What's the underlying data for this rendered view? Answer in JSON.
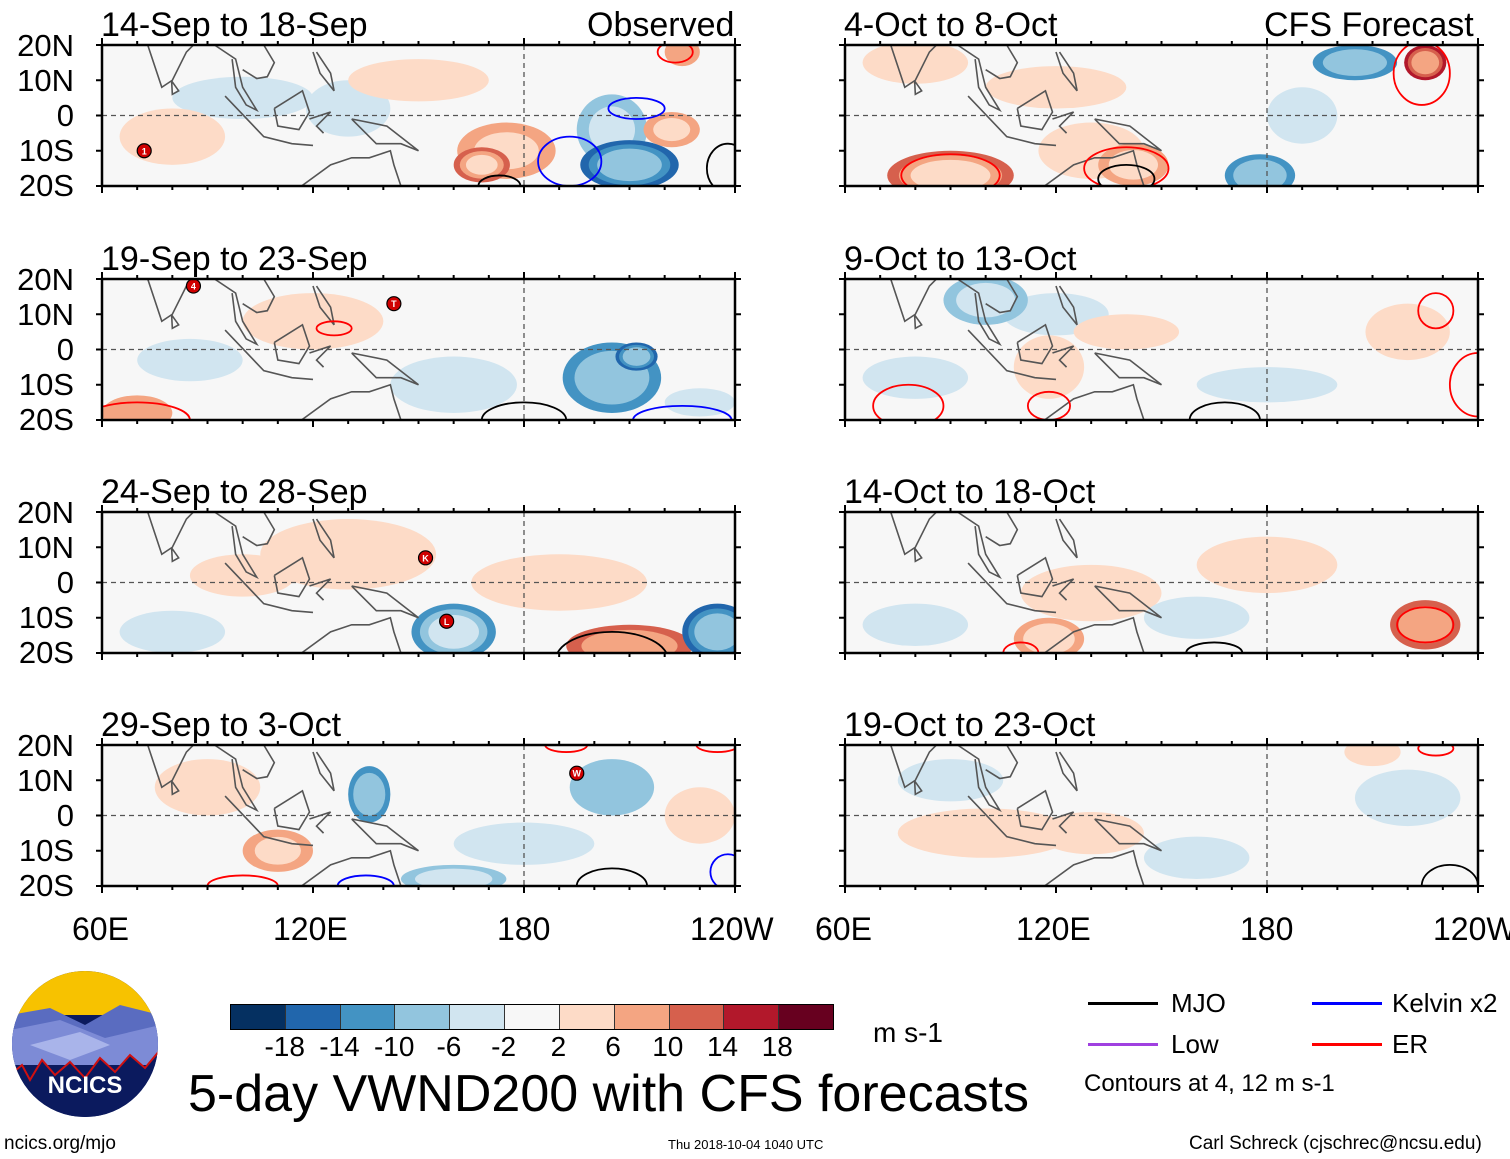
{
  "columns": [
    {
      "label": "Observed"
    },
    {
      "label": "CFS Forecast"
    }
  ],
  "lat_labels": [
    "20N",
    "10N",
    "0",
    "10S",
    "20S"
  ],
  "lon_labels": [
    "60E",
    "120E",
    "180",
    "120W"
  ],
  "panels": [
    {
      "title": "14-Sep to 18-Sep",
      "anoms": [
        [
          175,
          -10,
          14,
          8,
          7
        ],
        [
          168,
          -14,
          8,
          5,
          11
        ],
        [
          210,
          -14,
          14,
          7,
          -14
        ],
        [
          205,
          -4,
          10,
          10,
          -7
        ],
        [
          222,
          -4,
          8,
          5,
          7
        ],
        [
          100,
          5,
          20,
          6,
          -3
        ],
        [
          130,
          2,
          12,
          8,
          -3
        ],
        [
          80,
          -6,
          15,
          8,
          3
        ],
        [
          150,
          10,
          20,
          6,
          3
        ],
        [
          225,
          18,
          5,
          4,
          6
        ]
      ],
      "contours": [
        [
          212,
          2,
          8,
          3,
          "kelvin"
        ],
        [
          193,
          -13,
          9,
          7,
          "kelvin"
        ],
        [
          223,
          18,
          5,
          3,
          "er"
        ],
        [
          238,
          -15,
          6,
          7,
          "mjo"
        ],
        [
          173,
          -20,
          6,
          3,
          "mjo"
        ]
      ],
      "storms": [
        [
          72,
          -10,
          "1"
        ]
      ]
    },
    {
      "title": "4-Oct to 8-Oct",
      "anoms": [
        [
          90,
          -17,
          18,
          7,
          13
        ],
        [
          80,
          15,
          15,
          6,
          5
        ],
        [
          130,
          -10,
          15,
          8,
          4
        ],
        [
          178,
          -17,
          10,
          6,
          -10
        ],
        [
          205,
          15,
          12,
          5,
          -10
        ],
        [
          225,
          15,
          6,
          5,
          14
        ],
        [
          120,
          8,
          20,
          6,
          3
        ],
        [
          142,
          -14,
          10,
          6,
          8
        ],
        [
          190,
          0,
          10,
          8,
          -3
        ]
      ],
      "contours": [
        [
          90,
          -17,
          14,
          6,
          "er"
        ],
        [
          140,
          -15,
          12,
          6,
          "er"
        ],
        [
          140,
          -18,
          8,
          4,
          "mjo"
        ],
        [
          224,
          12,
          8,
          9,
          "er"
        ]
      ],
      "storms": []
    },
    {
      "title": "19-Sep to 23-Sep",
      "anoms": [
        [
          205,
          -8,
          14,
          10,
          -10
        ],
        [
          212,
          -2,
          6,
          4,
          -14
        ],
        [
          120,
          8,
          20,
          8,
          3
        ],
        [
          70,
          -18,
          10,
          5,
          6
        ],
        [
          160,
          -10,
          18,
          8,
          -3
        ],
        [
          85,
          -3,
          15,
          6,
          -3
        ],
        [
          230,
          -15,
          10,
          4,
          -5
        ]
      ],
      "contours": [
        [
          126,
          6,
          5,
          2,
          "er"
        ],
        [
          70,
          -20,
          15,
          5,
          "er"
        ],
        [
          180,
          -20,
          12,
          5,
          "mjo"
        ],
        [
          225,
          -20,
          14,
          4,
          "kelvin"
        ]
      ],
      "storms": [
        [
          86,
          18,
          "4"
        ],
        [
          143,
          13,
          "T"
        ]
      ]
    },
    {
      "title": "9-Oct to 13-Oct",
      "anoms": [
        [
          100,
          14,
          12,
          7,
          -8
        ],
        [
          118,
          -5,
          10,
          9,
          4
        ],
        [
          120,
          10,
          15,
          6,
          -3
        ],
        [
          80,
          -8,
          15,
          6,
          -3
        ],
        [
          180,
          -10,
          20,
          5,
          -3
        ],
        [
          220,
          5,
          12,
          8,
          3
        ],
        [
          140,
          5,
          15,
          5,
          3
        ]
      ],
      "contours": [
        [
          228,
          11,
          5,
          5,
          "er"
        ],
        [
          240,
          -10,
          8,
          9,
          "er"
        ],
        [
          78,
          -16,
          10,
          6,
          "er"
        ],
        [
          118,
          -16,
          6,
          4,
          "er"
        ],
        [
          168,
          -20,
          10,
          5,
          "mjo"
        ]
      ],
      "storms": []
    },
    {
      "title": "24-Sep to 28-Sep",
      "anoms": [
        [
          160,
          -14,
          12,
          8,
          -12
        ],
        [
          235,
          -14,
          10,
          8,
          -14
        ],
        [
          210,
          -18,
          18,
          6,
          10
        ],
        [
          130,
          8,
          25,
          10,
          3
        ],
        [
          80,
          -14,
          15,
          6,
          -3
        ],
        [
          190,
          0,
          25,
          8,
          3
        ],
        [
          100,
          2,
          15,
          6,
          3
        ]
      ],
      "contours": [
        [
          205,
          -22,
          16,
          8,
          "mjo"
        ]
      ],
      "storms": [
        [
          152,
          7,
          "K"
        ],
        [
          158,
          -11,
          "L"
        ]
      ]
    },
    {
      "title": "14-Oct to 18-Oct",
      "anoms": [
        [
          118,
          -16,
          10,
          6,
          9
        ],
        [
          225,
          -12,
          10,
          7,
          10
        ],
        [
          130,
          -3,
          20,
          8,
          3
        ],
        [
          160,
          -10,
          15,
          6,
          -3
        ],
        [
          80,
          -12,
          15,
          6,
          -3
        ],
        [
          180,
          5,
          20,
          8,
          3
        ]
      ],
      "contours": [
        [
          225,
          -12,
          8,
          5,
          "er"
        ],
        [
          110,
          -20,
          5,
          3,
          "er"
        ],
        [
          165,
          -20,
          8,
          3,
          "mjo"
        ]
      ],
      "storms": []
    },
    {
      "title": "29-Sep to 3-Oct",
      "anoms": [
        [
          136,
          6,
          6,
          8,
          -10
        ],
        [
          205,
          8,
          12,
          8,
          -6
        ],
        [
          110,
          -10,
          10,
          6,
          7
        ],
        [
          160,
          -18,
          15,
          4,
          -9
        ],
        [
          90,
          8,
          15,
          8,
          3
        ],
        [
          180,
          -8,
          20,
          6,
          -3
        ],
        [
          230,
          0,
          10,
          8,
          3
        ]
      ],
      "contours": [
        [
          100,
          -20,
          10,
          3,
          "er"
        ],
        [
          135,
          -20,
          8,
          3,
          "kelvin"
        ],
        [
          205,
          -20,
          10,
          5,
          "mjo"
        ],
        [
          238,
          -16,
          5,
          5,
          "kelvin"
        ],
        [
          192,
          20,
          6,
          2,
          "er"
        ],
        [
          235,
          20,
          6,
          2,
          "er"
        ]
      ],
      "storms": [
        [
          195,
          12,
          "W"
        ]
      ]
    },
    {
      "title": "19-Oct to 23-Oct",
      "anoms": [
        [
          100,
          -5,
          25,
          7,
          3
        ],
        [
          130,
          -5,
          15,
          6,
          3
        ],
        [
          220,
          5,
          15,
          8,
          -3
        ],
        [
          210,
          18,
          8,
          4,
          3
        ],
        [
          160,
          -12,
          15,
          6,
          -3
        ],
        [
          90,
          10,
          15,
          6,
          -3
        ]
      ],
      "contours": [
        [
          228,
          19,
          5,
          2,
          "er"
        ],
        [
          232,
          -20,
          8,
          6,
          "mjo"
        ]
      ],
      "storms": []
    }
  ],
  "colorbar": {
    "colors": [
      "#053061",
      "#2166ac",
      "#4393c3",
      "#92c5de",
      "#d1e5f0",
      "#f7f7f7",
      "#fddbc7",
      "#f4a582",
      "#d6604d",
      "#b2182b",
      "#67001f"
    ],
    "labels": [
      "-18",
      "-14",
      "-10",
      "-6",
      "-2",
      "2",
      "6",
      "10",
      "14",
      "18"
    ],
    "units": "m s-1"
  },
  "legend": {
    "items": [
      {
        "label": "MJO",
        "color": "#000000"
      },
      {
        "label": "Kelvin x2",
        "color": "#0000ff"
      },
      {
        "label": "Low",
        "color": "#a040e0"
      },
      {
        "label": "ER",
        "color": "#ff0000"
      }
    ],
    "note": "Contours at 4, 12 m s-1"
  },
  "logo_text": "NCICS",
  "main_title": "5-day VWND200 with CFS forecasts",
  "footer": {
    "url": "ncics.org/mjo",
    "timestamp": "Thu 2018-10-04 1040 UTC",
    "author": "Carl Schreck (cjschrec@ncsu.edu)"
  }
}
